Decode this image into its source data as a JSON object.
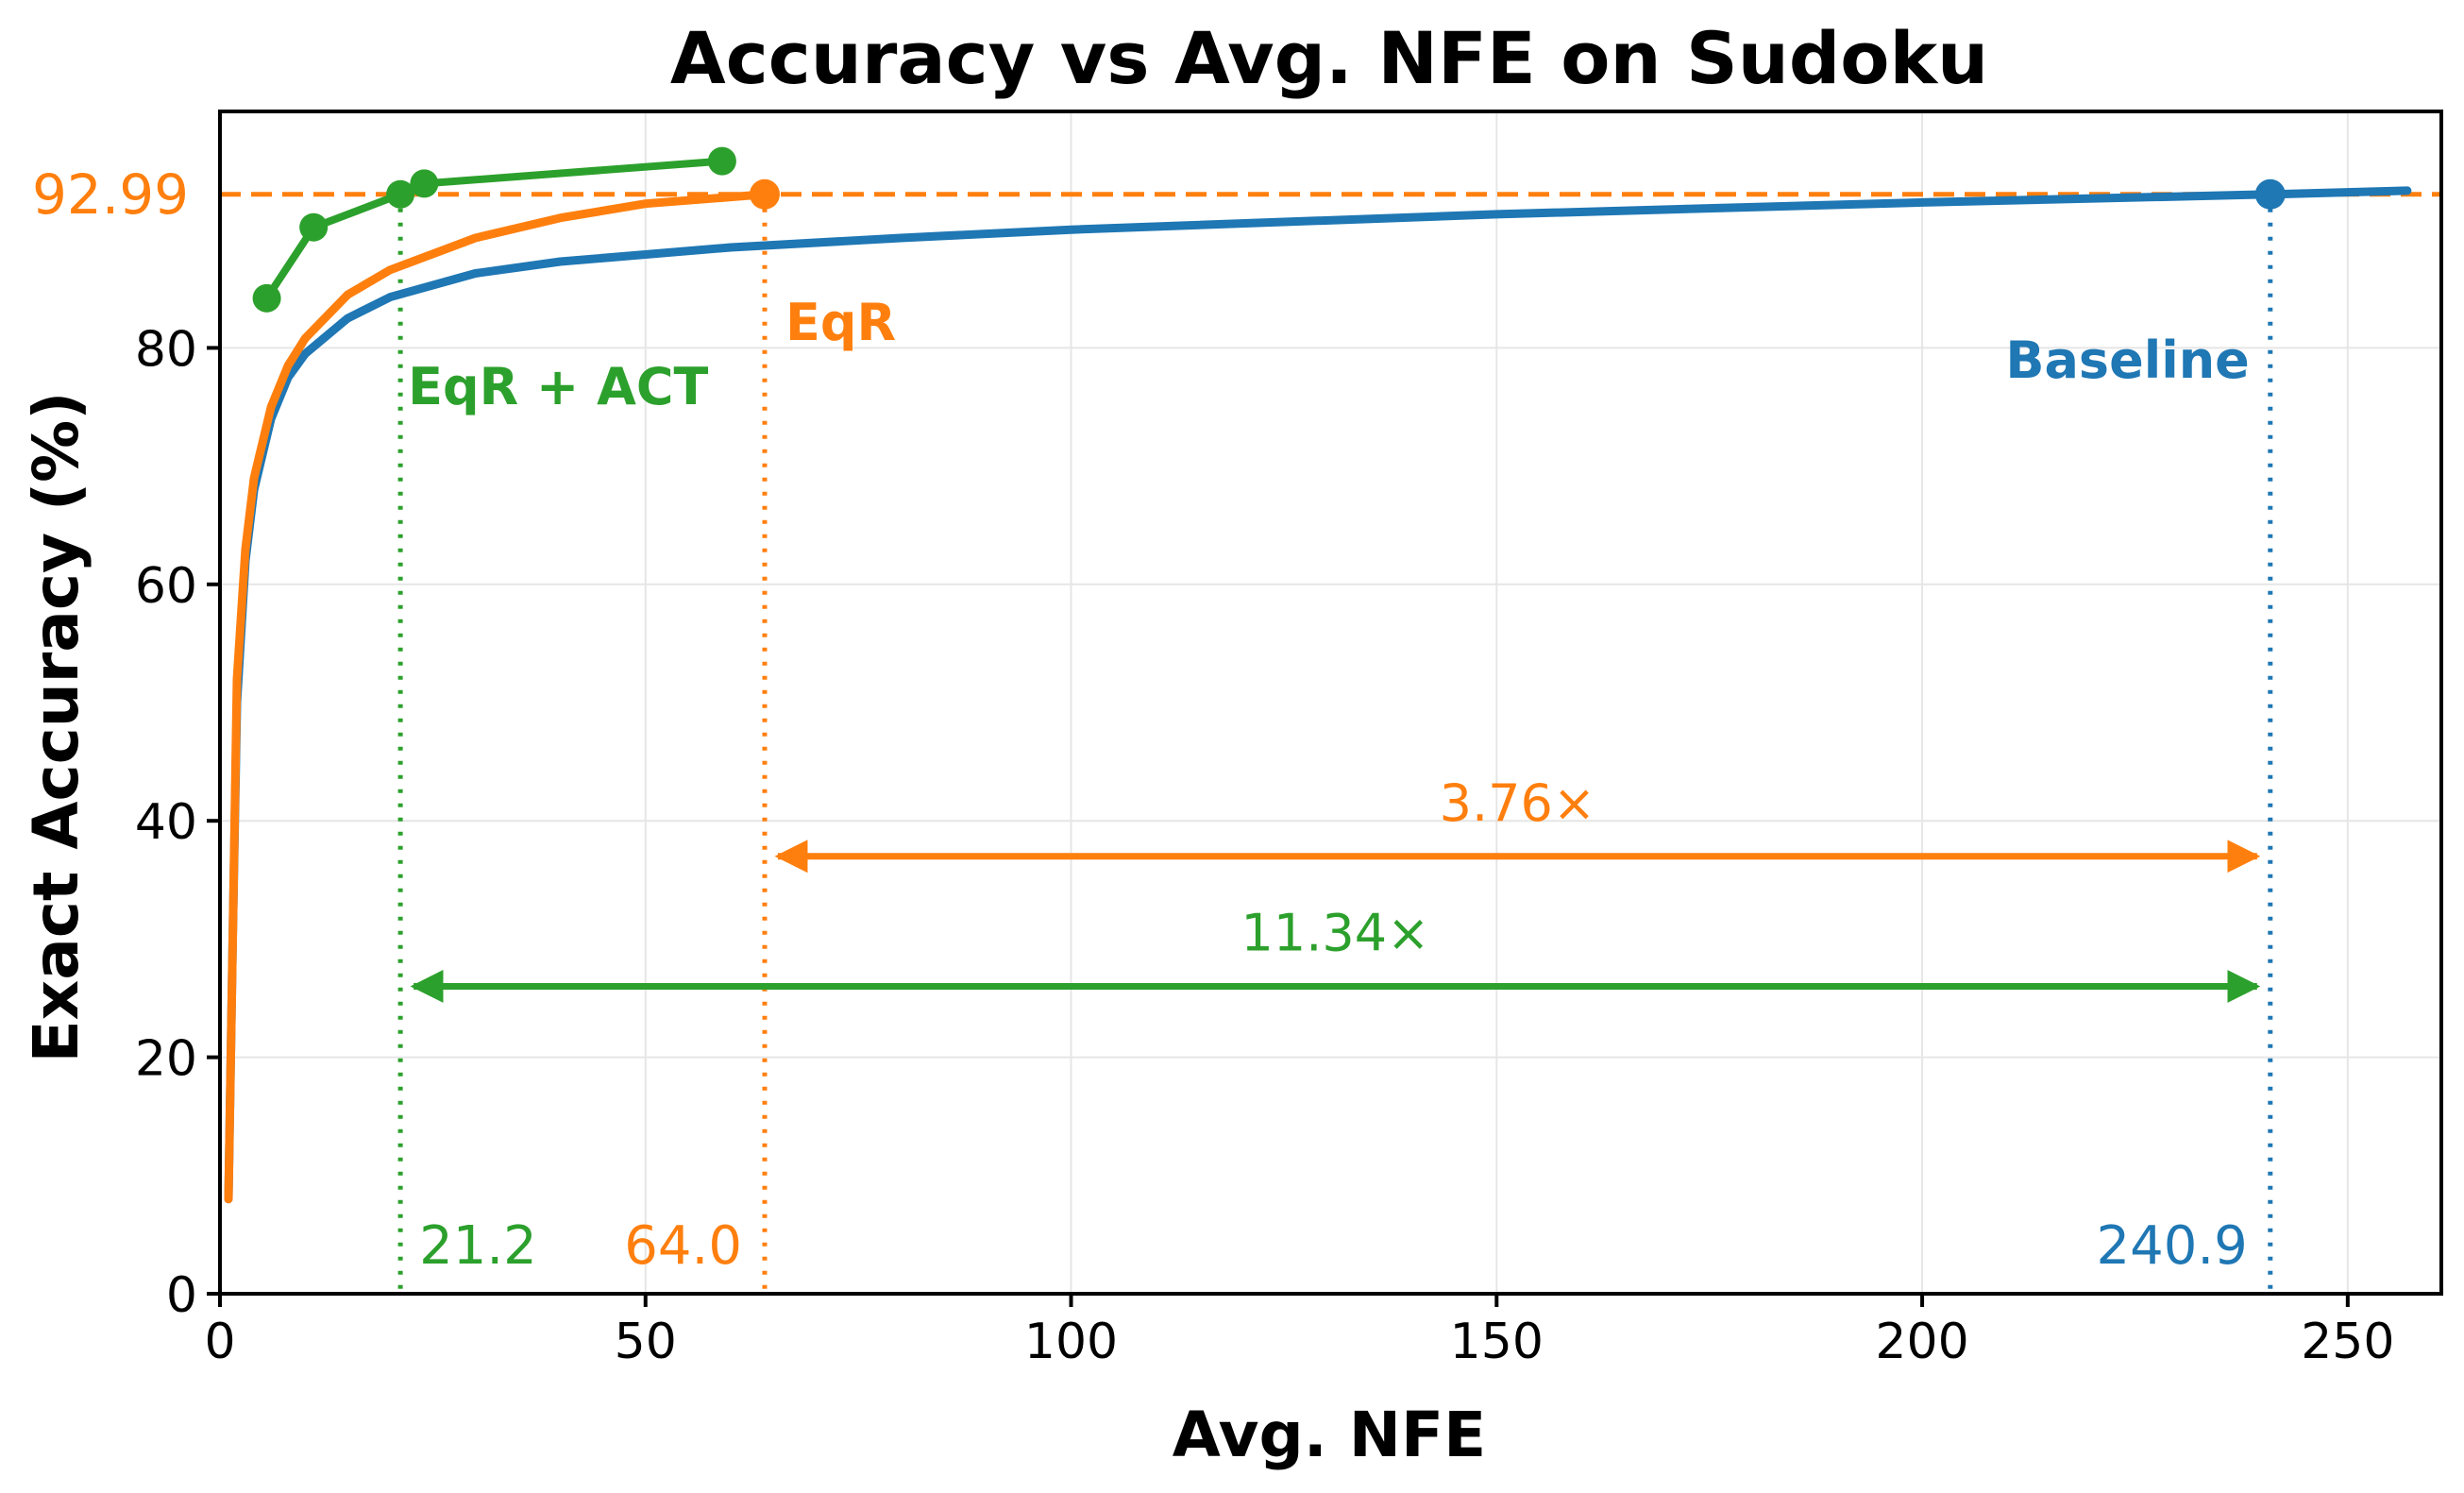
{
  "chart_data": {
    "type": "line",
    "title": "Accuracy vs Avg. NFE on Sudoku",
    "xlabel": "Avg. NFE",
    "ylabel": "Exact Accuracy (%)",
    "xlim": [
      0,
      261
    ],
    "ylim": [
      0,
      100
    ],
    "xticks": [
      0,
      50,
      100,
      150,
      200,
      250
    ],
    "yticks": [
      0,
      20,
      40,
      60,
      80
    ],
    "grid": true,
    "colors": {
      "baseline": "#1f77b4",
      "eqr": "#ff7f0e",
      "act": "#2ca02c"
    },
    "series": [
      {
        "key": "baseline",
        "name": "Baseline",
        "style": "line",
        "x": [
          1,
          1.5,
          2,
          3,
          4,
          6,
          8,
          10,
          15,
          20,
          30,
          40,
          60,
          80,
          100,
          150,
          200,
          240.9,
          257
        ],
        "y": [
          8,
          30,
          50,
          62,
          68,
          74,
          77.5,
          79.5,
          82.5,
          84.3,
          86.3,
          87.3,
          88.5,
          89.3,
          90.0,
          91.3,
          92.3,
          92.99,
          93.3
        ],
        "endpoint": {
          "x": 240.9,
          "y": 92.99
        }
      },
      {
        "key": "eqr",
        "name": "EqR",
        "style": "line",
        "x": [
          1,
          1.5,
          2,
          3,
          4,
          6,
          8,
          10,
          15,
          20,
          30,
          40,
          50,
          64.0
        ],
        "y": [
          8,
          30,
          52,
          63,
          69,
          75,
          78.5,
          80.8,
          84.5,
          86.6,
          89.3,
          91.0,
          92.2,
          92.99
        ],
        "endpoint": {
          "x": 64.0,
          "y": 92.99
        }
      },
      {
        "key": "act",
        "name": "EqR + ACT",
        "style": "line-markers",
        "x": [
          5.5,
          11,
          21.2,
          24,
          59
        ],
        "y": [
          84.2,
          90.2,
          92.99,
          93.9,
          95.8
        ]
      }
    ],
    "reference_line": {
      "y": 92.99,
      "label": "92.99"
    },
    "vlines": [
      {
        "key": "act",
        "x": 21.2,
        "label": "21.2"
      },
      {
        "key": "eqr",
        "x": 64.0,
        "label": "64.0"
      },
      {
        "key": "baseline",
        "x": 240.9,
        "label": "240.9"
      }
    ],
    "annotations": [
      {
        "key": "eqr",
        "text": "3.76×",
        "from": 64.0,
        "to": 240.9,
        "y": 37
      },
      {
        "key": "act",
        "text": "11.34×",
        "from": 21.2,
        "to": 240.9,
        "y": 26
      }
    ]
  }
}
